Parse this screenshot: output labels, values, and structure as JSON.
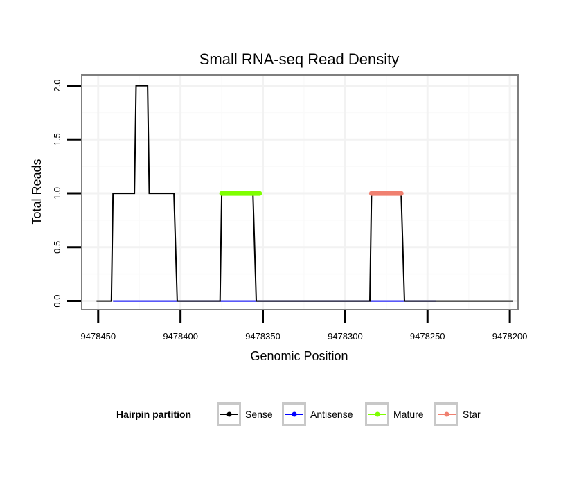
{
  "chart_data": {
    "type": "line",
    "title": "Small RNA-seq Read Density",
    "xlabel": "Genomic Position",
    "ylabel": "Total Reads",
    "x_reversed": true,
    "xlim": [
      9478460,
      9478195
    ],
    "ylim": [
      -0.08,
      2.1
    ],
    "x_ticks": [
      9478450,
      9478400,
      9478350,
      9478300,
      9478250,
      9478200
    ],
    "x_tick_labels": [
      "9478450",
      "9478400",
      "9478350",
      "9478300",
      "9478250",
      "9478200"
    ],
    "y_ticks": [
      0.0,
      0.5,
      1.0,
      1.5,
      2.0
    ],
    "y_tick_labels": [
      "0.0",
      "0.5",
      "1.0",
      "1.5",
      "2.0"
    ],
    "grid": true,
    "legend": {
      "title": "Hairpin partition",
      "position": "bottom",
      "entries": [
        {
          "label": "Sense",
          "color": "#000000"
        },
        {
          "label": "Antisense",
          "color": "#0000ff"
        },
        {
          "label": "Mature",
          "color": "#7fff00"
        },
        {
          "label": "Star",
          "color": "#f08070"
        }
      ]
    },
    "series": [
      {
        "name": "Antisense",
        "color": "#0000ff",
        "x": [
          9478441,
          9478396,
          9478355,
          9478334,
          9478264,
          9478245
        ],
        "y": [
          0,
          0,
          0,
          0,
          0,
          0
        ]
      },
      {
        "name": "Sense",
        "color": "#000000",
        "x": [
          9478451,
          9478442,
          9478441,
          9478428,
          9478427,
          9478420,
          9478419,
          9478404,
          9478402,
          9478376,
          9478375,
          9478356,
          9478354,
          9478285,
          9478284,
          9478266,
          9478264,
          9478198
        ],
        "y": [
          0,
          0,
          1,
          1,
          2,
          2,
          1,
          1,
          0,
          0,
          1,
          1,
          0,
          0,
          1,
          1,
          0,
          0
        ]
      },
      {
        "name": "Mature",
        "color": "#7fff00",
        "x": [
          9478375,
          9478352
        ],
        "y": [
          1,
          1
        ]
      },
      {
        "name": "Star",
        "color": "#f08070",
        "x": [
          9478284,
          9478266
        ],
        "y": [
          1,
          1
        ]
      }
    ]
  }
}
